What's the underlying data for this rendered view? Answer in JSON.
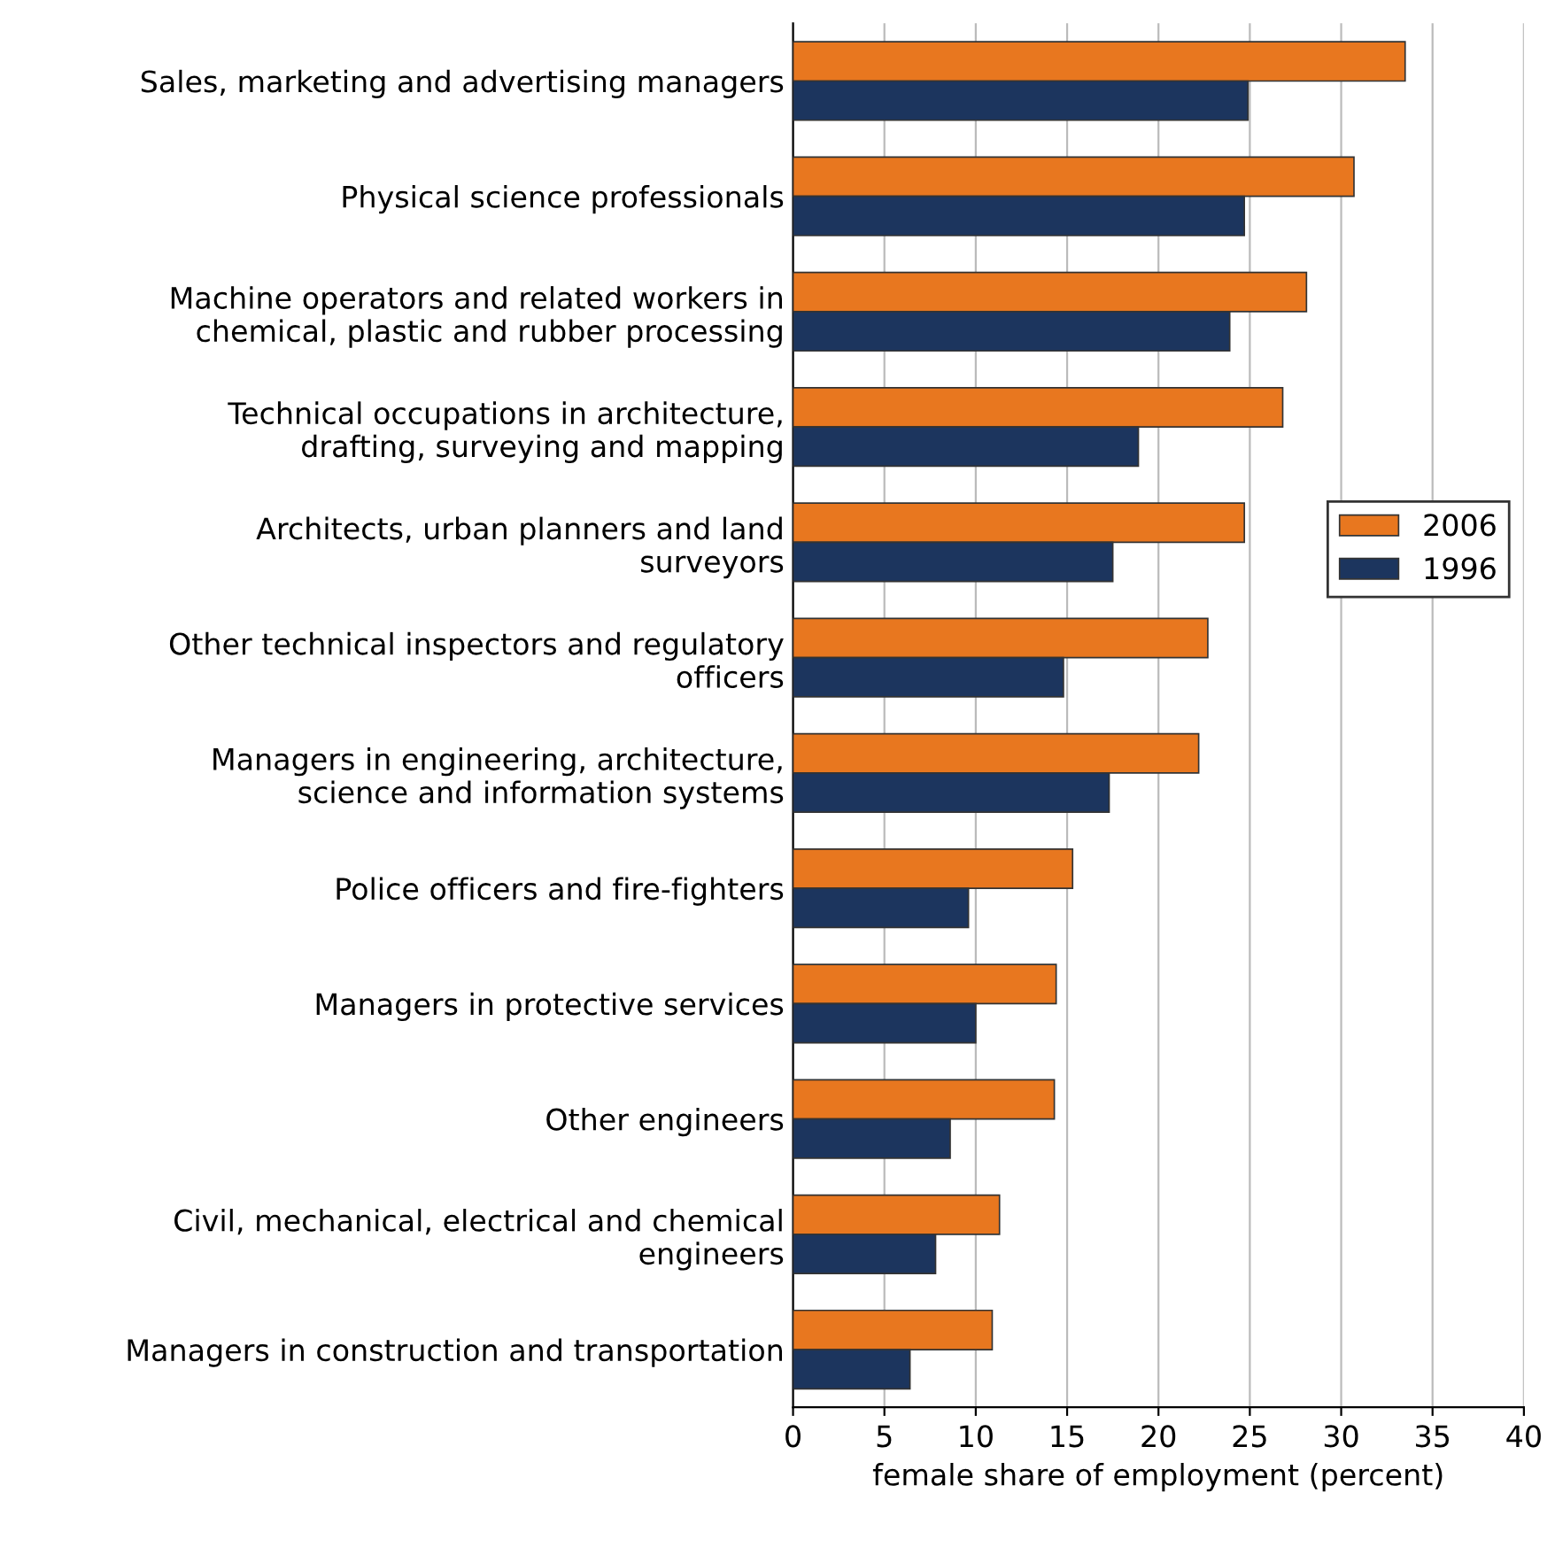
{
  "chart_data": {
    "type": "bar",
    "orientation": "horizontal",
    "xlabel": "female share of employment (percent)",
    "categories": [
      "Sales, marketing and advertising managers",
      "Physical science professionals",
      "Machine operators and related workers in\nchemical, plastic and rubber processing",
      "Technical occupations in architecture,\ndrafting, surveying and mapping",
      "Architects, urban planners and land\nsurveyors",
      "Other technical inspectors and regulatory\nofficers",
      "Managers in engineering, architecture,\nscience and information systems",
      "Police officers and fire-fighters",
      "Managers in protective services",
      "Other engineers",
      "Civil, mechanical, electrical and chemical\nengineers",
      "Managers in construction and transportation"
    ],
    "series": [
      {
        "name": "2006",
        "color": "#e8771f",
        "values": [
          33.5,
          30.7,
          28.1,
          26.8,
          24.7,
          22.7,
          22.2,
          15.3,
          14.4,
          14.3,
          11.3,
          10.9
        ]
      },
      {
        "name": "1996",
        "color": "#1c355e",
        "values": [
          24.9,
          24.7,
          23.9,
          18.9,
          17.5,
          14.8,
          17.3,
          9.6,
          10.0,
          8.6,
          7.8,
          6.4
        ]
      }
    ],
    "xlim": [
      0,
      40
    ],
    "xticks": [
      0,
      5,
      10,
      15,
      20,
      25,
      30,
      35,
      40
    ],
    "grid": "x",
    "legend": "right"
  }
}
